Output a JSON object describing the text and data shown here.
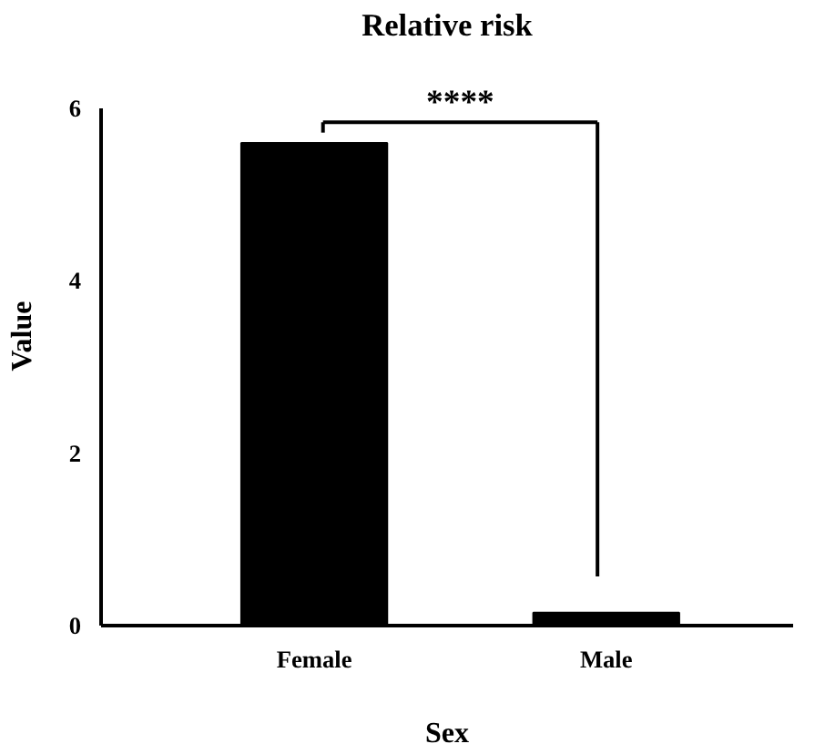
{
  "chart_data": {
    "type": "bar",
    "title": "Relative risk",
    "xlabel": "Sex",
    "ylabel": "Value",
    "categories": [
      "Female",
      "Male"
    ],
    "values": [
      5.6,
      0.15
    ],
    "color": "#000000",
    "ylim": [
      0,
      6
    ],
    "yticks": [
      0,
      2,
      4,
      6
    ],
    "grid": false,
    "annotations": [
      "****"
    ]
  }
}
